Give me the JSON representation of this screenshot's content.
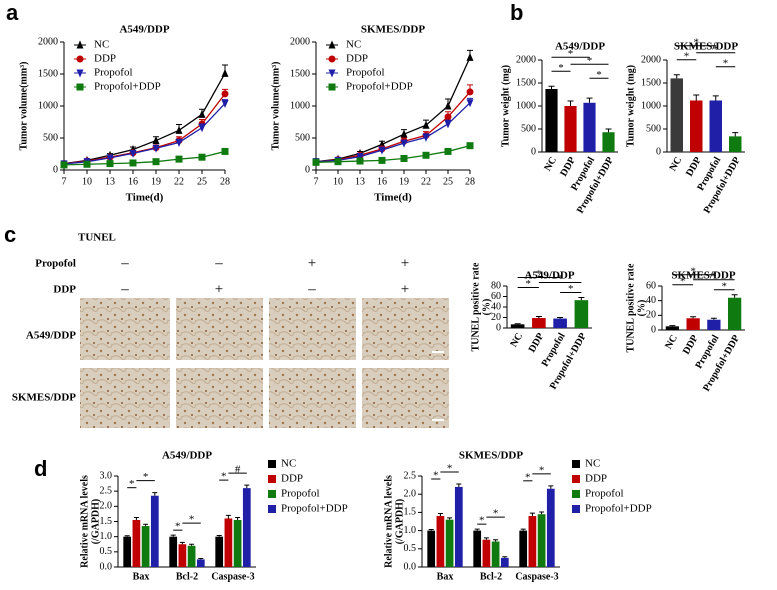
{
  "panel_labels": [
    "a",
    "b",
    "c",
    "d"
  ],
  "tunel_panel": {
    "title": "TUNEL",
    "row_labels": [
      "Propofol",
      "DDP"
    ],
    "signs": [
      [
        "–",
        "–",
        "+",
        "+"
      ],
      [
        "–",
        "+",
        "–",
        "+"
      ]
    ],
    "image_rows": [
      "A549/DDP",
      "SKMES/DDP"
    ]
  },
  "chart_data": [
    {
      "type": "line",
      "title": "A549/DDP",
      "x_label": "Time(d)",
      "y_label": "Tumor volume(mm³)",
      "x": [
        7,
        10,
        13,
        16,
        19,
        22,
        25,
        28
      ],
      "xlim": [
        7,
        28
      ],
      "xticks": [
        7,
        10,
        13,
        16,
        19,
        22,
        25,
        28
      ],
      "ylim": [
        0,
        2000
      ],
      "yticks": [
        0,
        500,
        1000,
        1500,
        2000
      ],
      "legend": "upper left",
      "series": [
        {
          "name": "NC",
          "color": "#000000",
          "marker": "triangle-up",
          "values": [
            100,
            150,
            230,
            320,
            460,
            620,
            870,
            1510
          ],
          "errors": [
            10,
            15,
            25,
            40,
            60,
            90,
            80,
            130
          ]
        },
        {
          "name": "DDP",
          "color": "#c00000",
          "marker": "circle",
          "values": [
            100,
            140,
            200,
            270,
            350,
            460,
            720,
            1190
          ],
          "errors": [
            10,
            12,
            20,
            30,
            40,
            60,
            70,
            70
          ]
        },
        {
          "name": "Propofol",
          "color": "#1f1fa8",
          "marker": "triangle-down",
          "values": [
            95,
            130,
            190,
            260,
            340,
            430,
            660,
            1040
          ],
          "errors": [
            10,
            12,
            20,
            30,
            40,
            50,
            60,
            60
          ]
        },
        {
          "name": "Propofol+DDP",
          "color": "#0f7a0f",
          "marker": "square",
          "values": [
            80,
            90,
            100,
            110,
            130,
            170,
            200,
            290
          ],
          "errors": [
            8,
            8,
            10,
            10,
            15,
            20,
            25,
            40
          ]
        }
      ]
    },
    {
      "type": "line",
      "title": "SKMES/DDP",
      "x_label": "Time(d)",
      "y_label": "Tumor volume(mm³)",
      "x": [
        7,
        10,
        13,
        16,
        19,
        22,
        25,
        28
      ],
      "xlim": [
        7,
        28
      ],
      "xticks": [
        7,
        10,
        13,
        16,
        19,
        22,
        25,
        28
      ],
      "ylim": [
        0,
        2000
      ],
      "yticks": [
        0,
        500,
        1000,
        1500,
        2000
      ],
      "legend": "upper left",
      "series": [
        {
          "name": "NC",
          "color": "#000000",
          "marker": "triangle-up",
          "values": [
            130,
            170,
            260,
            400,
            560,
            700,
            1000,
            1760
          ],
          "errors": [
            15,
            20,
            30,
            50,
            70,
            80,
            110,
            110
          ]
        },
        {
          "name": "DDP",
          "color": "#c00000",
          "marker": "circle",
          "values": [
            130,
            160,
            230,
            330,
            450,
            540,
            830,
            1220
          ],
          "errors": [
            15,
            15,
            25,
            40,
            50,
            60,
            80,
            110
          ]
        },
        {
          "name": "Propofol",
          "color": "#1f1fa8",
          "marker": "triangle-down",
          "values": [
            130,
            150,
            210,
            310,
            420,
            510,
            720,
            1050
          ],
          "errors": [
            15,
            15,
            25,
            35,
            45,
            55,
            60,
            70
          ]
        },
        {
          "name": "Propofol+DDP",
          "color": "#0f7a0f",
          "marker": "square",
          "values": [
            120,
            130,
            140,
            150,
            180,
            230,
            290,
            380
          ],
          "errors": [
            10,
            10,
            10,
            12,
            15,
            20,
            20,
            25
          ]
        }
      ]
    },
    {
      "type": "bar",
      "title": "A549/DDP",
      "y_label": "Tumor weight (mg)",
      "categories": [
        "NC",
        "DDP",
        "Propofol",
        "Propofol+DDP"
      ],
      "values": [
        1370,
        1000,
        1070,
        430
      ],
      "errors": [
        60,
        110,
        100,
        70
      ],
      "colors": [
        "#000000",
        "#c00000",
        "#1f1fa8",
        "#0f7a0f"
      ],
      "ylim": [
        0,
        2000
      ],
      "yticks": [
        0,
        500,
        1000,
        1500,
        2000
      ],
      "significance": [
        "*",
        "*",
        "*",
        "*"
      ]
    },
    {
      "type": "bar",
      "title": "SKMES/DDP",
      "y_label": "Tumor weight (mg)",
      "categories": [
        "NC",
        "DDP",
        "Propofol",
        "Propofol+DDP"
      ],
      "values": [
        1600,
        1120,
        1120,
        340
      ],
      "errors": [
        80,
        120,
        100,
        80
      ],
      "colors": [
        "#3a3a3a",
        "#c00000",
        "#1f1fa8",
        "#0f7a0f"
      ],
      "ylim": [
        0,
        2000
      ],
      "yticks": [
        0,
        500,
        1000,
        1500,
        2000
      ],
      "significance": [
        "*",
        "*",
        "*",
        "*"
      ]
    },
    {
      "type": "bar",
      "title": "A549/DDP",
      "y_label": [
        "TUNEL positive rate",
        "(%)"
      ],
      "categories": [
        "NC",
        "DDP",
        "Propofol",
        "Propofol+DDP"
      ],
      "values": [
        7,
        19,
        18,
        53
      ],
      "errors": [
        1,
        3,
        2,
        5
      ],
      "colors": [
        "#000000",
        "#c00000",
        "#1f1fa8",
        "#0f7a0f"
      ],
      "ylim": [
        0,
        80
      ],
      "yticks": [
        0,
        20,
        40,
        60,
        80
      ],
      "significance": [
        "*",
        "*",
        "*",
        "*"
      ]
    },
    {
      "type": "bar",
      "title": "SKMES/DDP",
      "y_label": [
        "TUNEL positive rate",
        "(%)"
      ],
      "categories": [
        "NC",
        "DDP",
        "Propofol",
        "Propofol+DDP"
      ],
      "values": [
        5,
        16,
        14,
        44
      ],
      "errors": [
        1,
        2,
        2,
        4
      ],
      "colors": [
        "#000000",
        "#c00000",
        "#1f1fa8",
        "#0f7a0f"
      ],
      "ylim": [
        0,
        60
      ],
      "yticks": [
        0,
        20,
        40,
        60
      ],
      "significance": [
        "*",
        "*",
        "*",
        "*"
      ]
    },
    {
      "type": "bar",
      "title": "A549/DDP",
      "y_label": [
        "Relative mRNA levels",
        "(/GAPDH)"
      ],
      "legend": "right",
      "categories": [
        "Bax",
        "Bcl-2",
        "Caspase-3"
      ],
      "ylim": [
        0,
        3
      ],
      "yticks": [
        {
          "value": 0,
          "label": "0.0"
        },
        {
          "value": 0.5,
          "label": "0.5"
        },
        {
          "value": 1,
          "label": "1.0"
        },
        {
          "value": 1.5,
          "label": "1.5"
        },
        {
          "value": 2,
          "label": "2.0"
        },
        {
          "value": 2.5,
          "label": "2.5"
        },
        {
          "value": 3,
          "label": "3.0"
        }
      ],
      "series": [
        {
          "name": "NC",
          "color": "#000000",
          "values": [
            1.0,
            1.0,
            1.0
          ],
          "errors": [
            0.03,
            0.05,
            0.04
          ]
        },
        {
          "name": "DDP",
          "color": "#c00000",
          "values": [
            1.55,
            0.75,
            1.6
          ],
          "errors": [
            0.08,
            0.06,
            0.1
          ]
        },
        {
          "name": "Propofol",
          "color": "#0f7a0f",
          "values": [
            1.35,
            0.7,
            1.55
          ],
          "errors": [
            0.06,
            0.05,
            0.08
          ]
        },
        {
          "name": "Propofol+DDP",
          "color": "#1f1fa8",
          "values": [
            2.35,
            0.25,
            2.6
          ],
          "errors": [
            0.1,
            0.03,
            0.1
          ]
        }
      ],
      "significance": [
        "*",
        "*",
        "*",
        "*",
        "*",
        "#"
      ]
    },
    {
      "type": "bar",
      "title": "SKMES/DDP",
      "y_label": [
        "Relative mRNA levels",
        "(/GAPDH)"
      ],
      "legend": "right",
      "categories": [
        "Bax",
        "Bcl-2",
        "Caspase-3"
      ],
      "ylim": [
        0,
        2.5
      ],
      "yticks": [
        {
          "value": 0,
          "label": "0.0"
        },
        {
          "value": 0.5,
          "label": "0.5"
        },
        {
          "value": 1,
          "label": "1.0"
        },
        {
          "value": 1.5,
          "label": "1.5"
        },
        {
          "value": 2,
          "label": "2.0"
        },
        {
          "value": 2.5,
          "label": "2.5"
        }
      ],
      "series": [
        {
          "name": "NC",
          "color": "#000000",
          "values": [
            1.0,
            1.0,
            1.0
          ],
          "errors": [
            0.03,
            0.04,
            0.04
          ]
        },
        {
          "name": "DDP",
          "color": "#c00000",
          "values": [
            1.4,
            0.75,
            1.4
          ],
          "errors": [
            0.07,
            0.05,
            0.08
          ]
        },
        {
          "name": "Propofol",
          "color": "#0f7a0f",
          "values": [
            1.3,
            0.7,
            1.45
          ],
          "errors": [
            0.05,
            0.05,
            0.06
          ]
        },
        {
          "name": "Propofol+DDP",
          "color": "#1f1fa8",
          "values": [
            2.2,
            0.25,
            2.15
          ],
          "errors": [
            0.08,
            0.03,
            0.08
          ]
        }
      ],
      "significance": [
        "*",
        "*",
        "*",
        "*",
        "*",
        "*"
      ]
    }
  ]
}
